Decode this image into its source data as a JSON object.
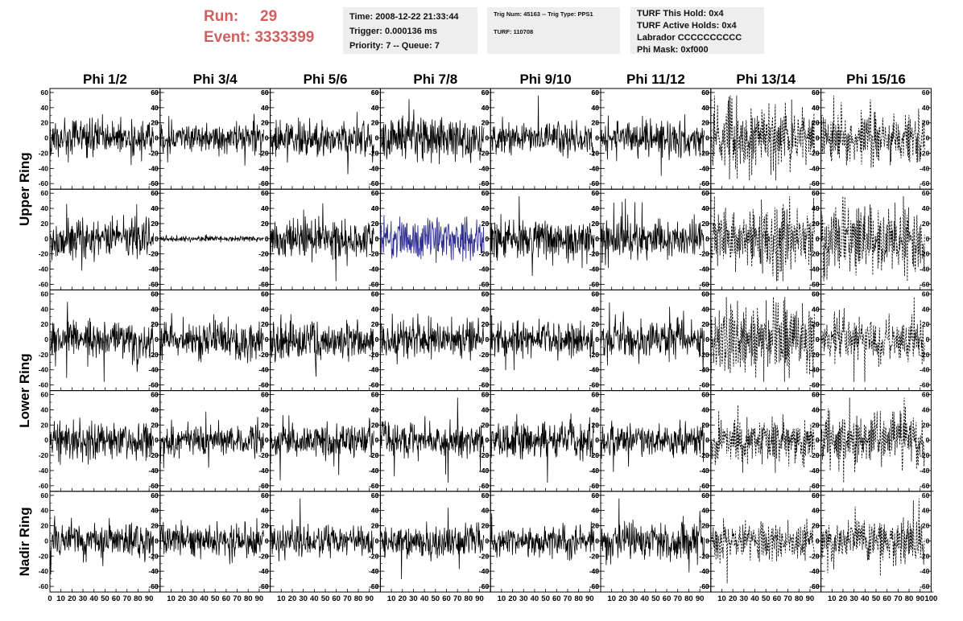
{
  "header": {
    "run_label": "Run:",
    "run_value": "29",
    "event_label": "Event:",
    "event_value": "3333399"
  },
  "info_time": {
    "time": "Time: 2008-12-22 21:33:44",
    "trigger": "Trigger: 0.000136 ms",
    "priority": "Priority: 7 -- Queue: 7"
  },
  "info_trig": {
    "trig_line": "Trig Num: 45163 -- Trig Type: PPS1",
    "turf_line": "TURF: 110708"
  },
  "info_turf": {
    "this_hold": "TURF This Hold: 0x4",
    "active_holds": "TURF Active Holds: 0x4",
    "labrador": "Labrador CCCCCCCCCC",
    "phi_mask": "Phi Mask: 0xf000"
  },
  "chart_data": {
    "type": "line",
    "columns": [
      "Phi 1/2",
      "Phi 3/4",
      "Phi 5/6",
      "Phi 7/8",
      "Phi 9/10",
      "Phi 11/12",
      "Phi 13/14",
      "Phi 15/16"
    ],
    "rows": [
      "Upper Ring",
      "Upper Ring",
      "Lower Ring",
      "Lower Ring",
      "Nadir Ring"
    ],
    "row_labels": [
      {
        "text": "Upper Ring",
        "rows": [
          0,
          1
        ]
      },
      {
        "text": "Lower Ring",
        "rows": [
          2,
          3
        ]
      },
      {
        "text": "Nadir Ring",
        "rows": [
          4,
          4
        ]
      }
    ],
    "xlim": [
      0,
      100
    ],
    "ylim": [
      -60,
      60
    ],
    "x_ticks": [
      0,
      10,
      20,
      30,
      40,
      50,
      60,
      70,
      80,
      90,
      100
    ],
    "y_ticks": [
      -60,
      -40,
      -20,
      0,
      20,
      40,
      60
    ],
    "x_span": [
      0,
      94
    ],
    "amplitude_grid": [
      [
        12,
        10,
        13,
        14,
        11,
        11,
        22,
        18
      ],
      [
        13,
        2,
        12,
        14,
        13,
        13,
        22,
        22
      ],
      [
        13,
        12,
        13,
        12,
        12,
        12,
        24,
        13
      ],
      [
        13,
        11,
        12,
        11,
        12,
        11,
        14,
        18
      ],
      [
        12,
        11,
        11,
        11,
        10,
        14,
        12,
        15
      ]
    ],
    "dashed_columns": [
      6,
      7
    ],
    "highlight": {
      "row": 1,
      "col": 3,
      "color": "#303090"
    },
    "colors": {
      "trace": "#000000",
      "highlight": "#303090",
      "frame": "#000000"
    }
  }
}
